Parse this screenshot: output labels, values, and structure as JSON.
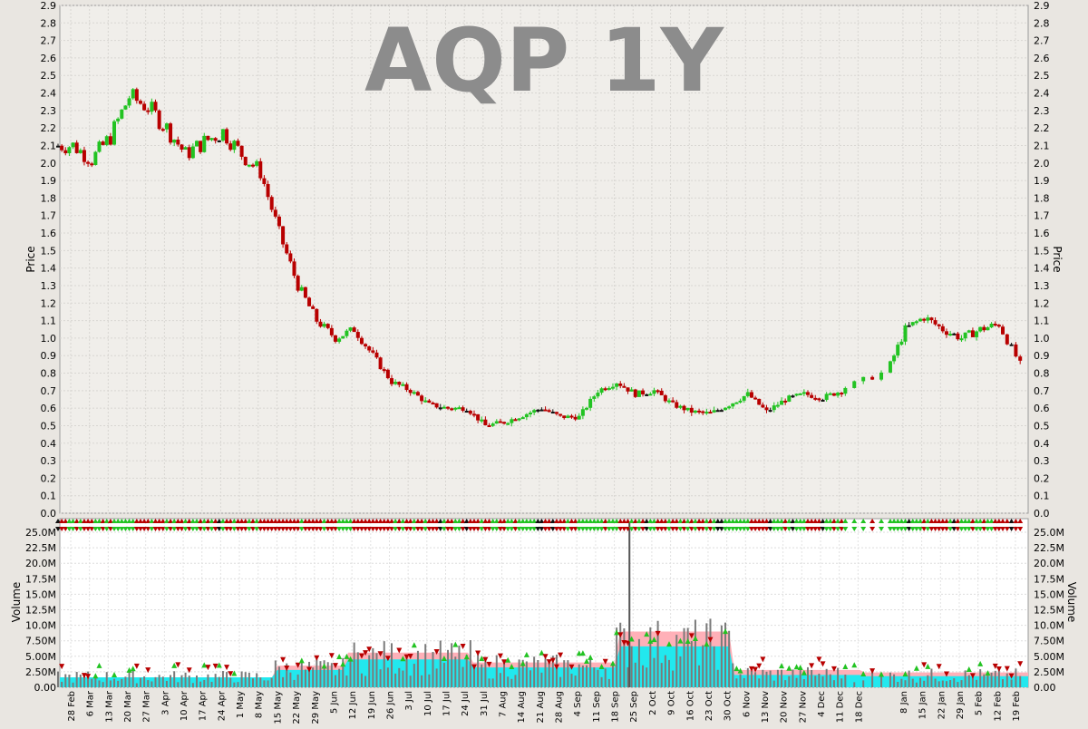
{
  "chart_data": {
    "type": "candlestick",
    "title": "AQP 1Y",
    "price_axis": {
      "label": "Price",
      "min": 0,
      "max": 2.9,
      "step": 0.1
    },
    "volume_axis": {
      "label": "Volume",
      "ticks": [
        "0.00",
        "2.50M",
        "5.00M",
        "7.50M",
        "10.0M",
        "12.5M",
        "15.0M",
        "17.5M",
        "20.0M",
        "22.5M",
        "25.0M"
      ]
    },
    "x_labels": [
      "28 Feb",
      "6 Mar",
      "13 Mar",
      "20 Mar",
      "27 Mar",
      "3 Apr",
      "10 Apr",
      "17 Apr",
      "24 Apr",
      "1 May",
      "8 May",
      "15 May",
      "22 May",
      "29 May",
      "5 Jun",
      "12 Jun",
      "19 Jun",
      "26 Jun",
      "3 Jul",
      "10 Jul",
      "17 Jul",
      "24 Jul",
      "31 Jul",
      "7 Aug",
      "14 Aug",
      "21 Aug",
      "28 Aug",
      "4 Sep",
      "11 Sep",
      "18 Sep",
      "25 Sep",
      "2 Oct",
      "9 Oct",
      "16 Oct",
      "23 Oct",
      "30 Oct",
      "6 Nov",
      "13 Nov",
      "20 Nov",
      "27 Nov",
      "4 Dec",
      "11 Dec",
      "18 Dec",
      "8 Jan",
      "15 Jan",
      "22 Jan",
      "29 Jan",
      "5 Feb",
      "12 Feb",
      "19 Feb"
    ],
    "weekly_close": [
      2.1,
      2.02,
      2.15,
      2.38,
      2.32,
      2.2,
      2.05,
      2.12,
      2.18,
      2.05,
      1.95,
      1.6,
      1.3,
      1.1,
      1.0,
      1.05,
      0.9,
      0.75,
      0.7,
      0.62,
      0.6,
      0.6,
      0.5,
      0.52,
      0.56,
      0.6,
      0.55,
      0.55,
      0.7,
      0.75,
      0.68,
      0.7,
      0.62,
      0.58,
      0.57,
      0.62,
      0.68,
      0.58,
      0.65,
      0.68,
      0.66,
      0.7,
      0.8,
      1.05,
      1.12,
      1.05,
      1.0,
      1.05,
      1.08,
      0.85
    ],
    "volume_spike": {
      "label": "25 Sep",
      "value_m": 26.5
    },
    "colors": {
      "up": "#22c322",
      "down": "#b80000",
      "unchanged": "#111111",
      "title": "#8c8c8c",
      "plot_bg": "#f0eeea",
      "vol_avg_long": "#ffb0b8",
      "vol_avg_short": "#22e8ee",
      "volume_bar": "#7a7a7a"
    }
  }
}
